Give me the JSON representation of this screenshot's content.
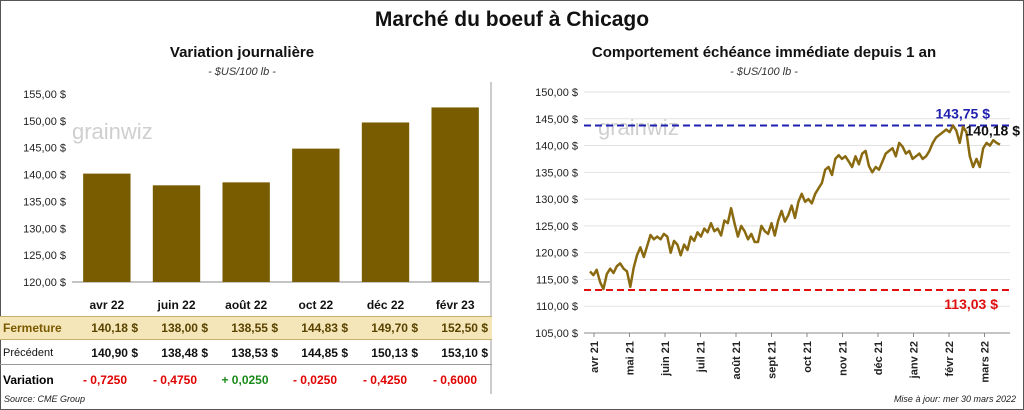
{
  "title": "Marché du boeuf à Chicago",
  "left_chart": {
    "title": "Variation  journalière",
    "unit": "- $US/100 lb -",
    "watermark": "grainwiz"
  },
  "right_chart": {
    "title": "Comportement  échéance immédiate depuis 1 an",
    "unit": "- $US/100 lb -",
    "watermark": "grainwiz",
    "max_label": "143,75 $",
    "last_label": "140,18 $",
    "min_label": "113,03 $"
  },
  "table": {
    "close_label": "Fermeture",
    "prev_label": "Précédent",
    "var_label": "Variation",
    "close": [
      "140,18  $",
      "138,00  $",
      "138,55  $",
      "144,83  $",
      "149,70  $",
      "152,50  $"
    ],
    "prev": [
      "140,90  $",
      "138,48  $",
      "138,53  $",
      "144,85  $",
      "150,13  $",
      "153,10  $"
    ],
    "var": [
      "- 0,7250",
      "- 0,4750",
      "+ 0,0250",
      "- 0,0250",
      "- 0,4250",
      "- 0,6000"
    ]
  },
  "footer": {
    "source": "Source: CME Group",
    "update": "Mise à jour: mer 30 mars 2022"
  },
  "colors": {
    "bar": "#7a5c00",
    "line": "#8a6a10",
    "max_line": "#2020b0",
    "min_line": "#e01010"
  },
  "chart_data": [
    {
      "type": "bar",
      "title": "Variation  journalière",
      "categories": [
        "avr 22",
        "juin 22",
        "août 22",
        "oct 22",
        "déc 22",
        "févr 23"
      ],
      "values": [
        140.18,
        138.0,
        138.55,
        144.83,
        149.7,
        152.5
      ],
      "ylim": [
        120,
        155
      ],
      "yticks": [
        120,
        125,
        130,
        135,
        140,
        145,
        150,
        155
      ],
      "ytick_labels": [
        "120,00 $",
        "125,00 $",
        "130,00 $",
        "135,00 $",
        "140,00 $",
        "145,00 $",
        "150,00 $",
        "155,00 $"
      ],
      "ylabel": "- $US/100 lb -"
    },
    {
      "type": "line",
      "title": "Comportement  échéance immédiate depuis 1 an",
      "ylabel": "- $US/100 lb -",
      "ylim": [
        105,
        150
      ],
      "yticks": [
        105,
        110,
        115,
        120,
        125,
        130,
        135,
        140,
        145,
        150
      ],
      "ytick_labels": [
        "105,00 $",
        "110,00 $",
        "115,00 $",
        "120,00 $",
        "125,00 $",
        "130,00 $",
        "135,00 $",
        "140,00 $",
        "145,00 $",
        "150,00 $"
      ],
      "x_labels": [
        "avr 21",
        "mai 21",
        "juin 21",
        "juil 21",
        "août 21",
        "sept 21",
        "oct 21",
        "nov 21",
        "déc 21",
        "janv 22",
        "févr 22",
        "mars 22"
      ],
      "hlines": [
        {
          "value": 143.75,
          "label": "143,75 $"
        },
        {
          "value": 113.03,
          "label": "113,03 $"
        }
      ],
      "series": [
        {
          "values": [
            116.5,
            115.8,
            116.8,
            114.5,
            113.2,
            116.0,
            117.0,
            116.2,
            117.5,
            118.0,
            117.0,
            116.5,
            113.6,
            117.2,
            119.5,
            121.0,
            119.2,
            121.2,
            123.3,
            122.5,
            123.0,
            122.5,
            123.5,
            123.0,
            120.0,
            122.2,
            121.5,
            119.5,
            121.5,
            120.5,
            123.0,
            122.2,
            123.8,
            123.0,
            124.5,
            123.8,
            125.5,
            124.0,
            124.5,
            123.2,
            126.0,
            125.5,
            128.3,
            125.5,
            123.0,
            125.0,
            124.0,
            122.5,
            123.5,
            122.0,
            122.0,
            125.0,
            124.0,
            123.5,
            125.5,
            123.2,
            126.0,
            127.8,
            125.8,
            127.0,
            128.8,
            126.5,
            129.5,
            131.0,
            129.5,
            130.0,
            129.2,
            131.0,
            132.0,
            133.0,
            135.5,
            136.0,
            134.5,
            137.5,
            138.2,
            137.5,
            138.0,
            137.0,
            136.0,
            138.0,
            136.5,
            138.5,
            139.0,
            136.2,
            135.0,
            136.0,
            135.5,
            137.0,
            138.5,
            139.0,
            139.5,
            138.0,
            140.5,
            139.8,
            138.5,
            139.0,
            137.5,
            138.0,
            138.5,
            137.5,
            138.0,
            139.0,
            140.5,
            141.5,
            142.0,
            142.5,
            143.0,
            142.5,
            143.75,
            142.8,
            140.5,
            143.5,
            142.5,
            138.0,
            136.0,
            137.5,
            136.0,
            139.5,
            140.5,
            140.0,
            141.0,
            140.5,
            140.18
          ]
        }
      ]
    }
  ]
}
